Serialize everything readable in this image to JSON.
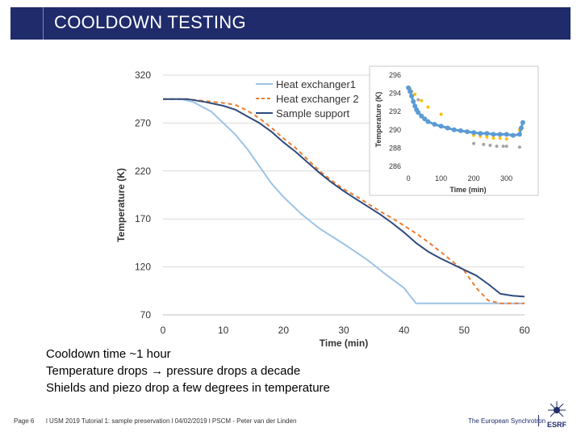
{
  "slide": {
    "title": "COOLDOWN TESTING",
    "bullets": [
      "Cooldown time ~1 hour",
      "Temperature drops → pressure drops a decade",
      "Shields and piezo drop a few degrees in temperature"
    ],
    "footer_page": "Page 6",
    "footer_text": "l USM 2019 Tutorial 1: sample preservation l 04/02/2019 l PSCM - Peter van der Linden",
    "footer_org": "The European Synchrotron",
    "logo_text": "ESRF"
  },
  "colors": {
    "title_bar": "#1f2b6b",
    "heat_exchanger_1": "#9dc3e6",
    "heat_exchanger_2": "#ed7d31",
    "sample_support": "#2e4a7d",
    "inset_support": "#5b9bd5",
    "inset_hx2": "#ffc000",
    "inset_hx1": "#a5a5a5"
  },
  "chart_data": [
    {
      "type": "line",
      "xlabel": "Time (min)",
      "ylabel": "Temperature (K)",
      "xlim": [
        0,
        60
      ],
      "ylim": [
        70,
        320
      ],
      "xticks": [
        0,
        10,
        20,
        30,
        40,
        50,
        60
      ],
      "yticks": [
        70,
        120,
        170,
        220,
        270,
        320
      ],
      "grid": "horizontal",
      "legend": "top-right",
      "series": [
        {
          "name": "Heat exchanger1",
          "x": [
            0,
            3,
            5,
            8,
            10,
            12,
            14,
            16,
            18,
            20,
            23,
            26,
            30,
            34,
            37,
            40,
            42,
            50,
            60
          ],
          "y": [
            295,
            295,
            292,
            282,
            270,
            258,
            243,
            225,
            207,
            193,
            175,
            160,
            144,
            127,
            112,
            98,
            82,
            82,
            82
          ]
        },
        {
          "name": "Heat exchanger 2",
          "x": [
            0,
            4,
            7,
            10,
            12,
            14,
            16,
            18,
            20,
            22,
            24,
            26,
            28,
            30,
            32,
            34,
            36,
            38,
            40,
            42,
            44,
            46,
            48,
            50,
            52,
            54,
            56,
            58,
            60
          ],
          "y": [
            295,
            295,
            293,
            291,
            289,
            283,
            275,
            265,
            254,
            244,
            232,
            220,
            210,
            201,
            194,
            186,
            178,
            171,
            163,
            155,
            146,
            136,
            126,
            116,
            98,
            85,
            82,
            82,
            82
          ]
        },
        {
          "name": "Sample support",
          "x": [
            0,
            4,
            7,
            10,
            12,
            14,
            16,
            18,
            20,
            22,
            24,
            26,
            28,
            30,
            32,
            34,
            36,
            38,
            40,
            42,
            44,
            46,
            48,
            50,
            52,
            54,
            56,
            58,
            60
          ],
          "y": [
            295,
            295,
            292,
            288,
            284,
            277,
            270,
            261,
            250,
            240,
            229,
            218,
            208,
            199,
            191,
            183,
            175,
            166,
            156,
            145,
            136,
            129,
            123,
            117,
            111,
            102,
            92,
            90,
            89
          ]
        }
      ]
    },
    {
      "type": "scatter",
      "xlabel": "Time (min)",
      "ylabel": "Temperature (K)",
      "xlim": [
        -15,
        360
      ],
      "ylim": [
        286,
        296
      ],
      "xticks": [
        0,
        100,
        200,
        300
      ],
      "yticks": [
        286,
        288,
        290,
        292,
        294,
        296
      ],
      "series": [
        {
          "x": [
            0,
            5,
            10,
            15,
            20,
            25,
            30,
            40,
            50,
            60,
            80,
            100,
            120,
            140,
            160,
            180,
            200,
            220,
            240,
            260,
            280,
            300,
            320,
            340,
            345,
            350
          ],
          "y": [
            294.6,
            294.2,
            293.7,
            293.1,
            292.6,
            292.2,
            291.9,
            291.5,
            291.2,
            290.9,
            290.6,
            290.4,
            290.2,
            290.0,
            289.9,
            289.8,
            289.7,
            289.6,
            289.6,
            289.5,
            289.5,
            289.5,
            289.4,
            289.5,
            290.2,
            290.8
          ]
        },
        {
          "x": [
            5,
            20,
            40,
            60,
            100,
            200,
            220,
            240,
            260,
            280,
            300,
            340
          ],
          "y": [
            294.5,
            293.9,
            293.2,
            292.5,
            291.7,
            289.4,
            289.3,
            289.2,
            289.1,
            289.1,
            289.0,
            290.0
          ]
        },
        {
          "x": [
            10,
            30,
            200,
            230,
            250,
            270,
            290,
            300,
            340
          ],
          "y": [
            294.2,
            293.3,
            288.5,
            288.4,
            288.3,
            288.2,
            288.2,
            288.2,
            288.1
          ]
        }
      ]
    }
  ]
}
